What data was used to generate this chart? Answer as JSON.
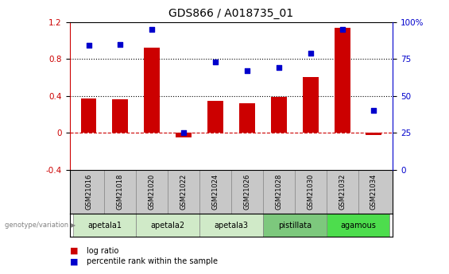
{
  "title": "GDS866 / A018735_01",
  "samples": [
    "GSM21016",
    "GSM21018",
    "GSM21020",
    "GSM21022",
    "GSM21024",
    "GSM21026",
    "GSM21028",
    "GSM21030",
    "GSM21032",
    "GSM21034"
  ],
  "log_ratio": [
    0.37,
    0.36,
    0.92,
    -0.05,
    0.35,
    0.32,
    0.39,
    0.6,
    1.14,
    -0.02
  ],
  "percentile_rank_pct": [
    84,
    85,
    95,
    25,
    73,
    67,
    69,
    79,
    95,
    40
  ],
  "bar_color": "#cc0000",
  "dot_color": "#0000cc",
  "ylim_left": [
    -0.4,
    1.2
  ],
  "ylim_right": [
    0,
    100
  ],
  "yticks_left": [
    -0.4,
    0.0,
    0.4,
    0.8,
    1.2
  ],
  "yticks_right": [
    0,
    25,
    50,
    75,
    100
  ],
  "groups": [
    {
      "label": "apetala1",
      "indices": [
        0,
        1
      ],
      "color": "#d0eac8"
    },
    {
      "label": "apetala2",
      "indices": [
        2,
        3
      ],
      "color": "#d0eac8"
    },
    {
      "label": "apetala3",
      "indices": [
        4,
        5
      ],
      "color": "#d0eac8"
    },
    {
      "label": "pistillata",
      "indices": [
        6,
        7
      ],
      "color": "#7dc87d"
    },
    {
      "label": "agamous",
      "indices": [
        8,
        9
      ],
      "color": "#4ddd4d"
    }
  ],
  "sample_bg_color": "#c8c8c8",
  "legend_log_ratio": "log ratio",
  "legend_percentile": "percentile rank within the sample",
  "genotype_label": "genotype/variation",
  "background_color": "#ffffff",
  "zero_line_color": "#cc0000",
  "dotted_line_color": "#000000",
  "bar_width": 0.5
}
